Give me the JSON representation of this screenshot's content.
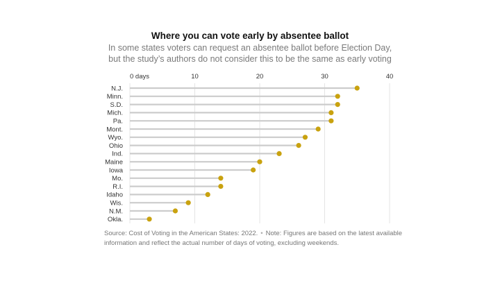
{
  "title": "Where you can vote early by absentee ballot",
  "subtitle_lines": [
    "In some states voters can request an absentee ballot before Election Day,",
    "but the study’s authors do not consider this to be the same as early voting"
  ],
  "chart_data": {
    "type": "dot",
    "title": "Where you can vote early by absentee ballot",
    "xlim": [
      0,
      40
    ],
    "x_ticks": [
      "0 days",
      "10",
      "20",
      "30",
      "40"
    ],
    "x_tick_values": [
      0,
      10,
      20,
      30,
      40
    ],
    "grid": true,
    "categories": [
      "N.J.",
      "Minn.",
      "S.D.",
      "Mich.",
      "Pa.",
      "Mont.",
      "Wyo.",
      "Ohio",
      "Ind.",
      "Maine",
      "Iowa",
      "Mo.",
      "R.I.",
      "Idaho",
      "Wis.",
      "N.M.",
      "Okla."
    ],
    "values": [
      35,
      32,
      32,
      31,
      31,
      29,
      27,
      26,
      23,
      20,
      19,
      14,
      14,
      12,
      9,
      7,
      3
    ],
    "dot_color": "#c9a20f",
    "stem_color": "#cccccc",
    "grid_color": "#e4e4e4"
  },
  "footer": {
    "source": "Source: Cost of Voting in the American States: 2022.",
    "separator": "•",
    "note": "Note: Figures are based on the latest available information and reflect the actual number of days of voting, excluding weekends."
  }
}
